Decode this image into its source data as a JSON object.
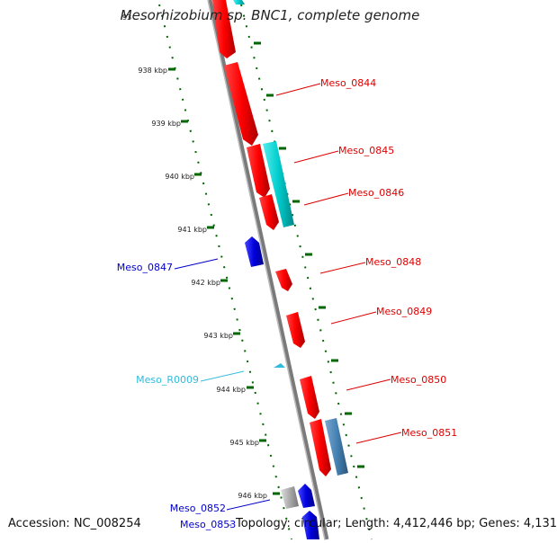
{
  "title": "Mesorhizobium sp. BNC1, complete genome",
  "footer": {
    "accession": "Accession: NC_008254",
    "topology": "Topology: circular; Length: 4,412,446 bp; Genes: 4,131"
  },
  "ruler": {
    "partial_top_label": "93",
    "ticks": [
      "938 kbp",
      "939 kbp",
      "940 kbp",
      "941 kbp",
      "942 kbp",
      "943 kbp",
      "944 kbp",
      "945 kbp",
      "946 kbp"
    ]
  },
  "colors": {
    "red": "#ff0000",
    "cyan": "#00cccc",
    "blue": "#0000dd",
    "steelblue": "#4682b4",
    "lightblue": "#33bbdd",
    "gray": "#aaaaaa",
    "track": "#888888",
    "ruler": "#006600"
  },
  "features": [
    {
      "name": "Meso_0844",
      "color": "red"
    },
    {
      "name": "Meso_0845",
      "color": "red"
    },
    {
      "name": "Meso_0846",
      "color": "red"
    },
    {
      "name": "Meso_0847",
      "color": "blue"
    },
    {
      "name": "Meso_0848",
      "color": "red"
    },
    {
      "name": "Meso_0849",
      "color": "red"
    },
    {
      "name": "Meso_R0009",
      "color": "lightblue"
    },
    {
      "name": "Meso_0850",
      "color": "red"
    },
    {
      "name": "Meso_0851",
      "color": "red"
    },
    {
      "name": "Meso_0852",
      "color": "blue"
    },
    {
      "name": "Meso_0853",
      "color": "blue"
    }
  ]
}
